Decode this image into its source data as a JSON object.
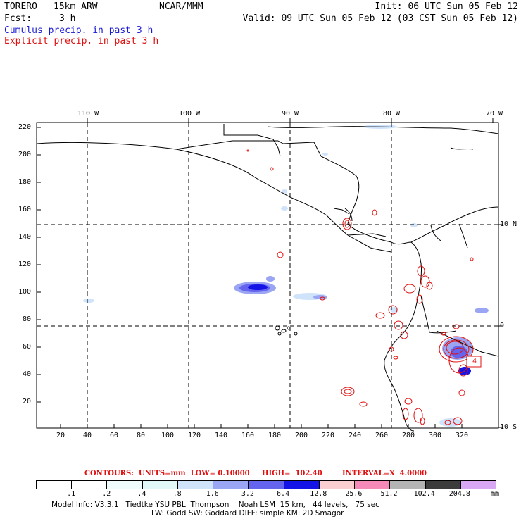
{
  "header": {
    "model": "TORERO",
    "resolution": "15km ARW",
    "org": "NCAR/MMM",
    "init": "Init: 06 UTC Sun 05 Feb 12",
    "fcst_label": "Fcst:",
    "fcst_value": "3 h",
    "valid": "Valid: 09 UTC Sun 05 Feb 12 (03 CST Sun 05 Feb 12)",
    "line_cumulus": "Cumulus precip. in past 3 h",
    "line_explicit": "Explicit precip. in past 3 h"
  },
  "colors": {
    "cumulus": "#1a1ad6",
    "explicit": "#e01010",
    "coast": "#000000"
  },
  "axes": {
    "top_lon": [
      "110 W",
      "100 W",
      "90 W",
      "80 W",
      "70 W"
    ],
    "right_lat": [
      "10 N",
      "0",
      "10 S"
    ],
    "left_y": [
      "220",
      "200",
      "180",
      "160",
      "140",
      "120",
      "100",
      "80",
      "60",
      "40",
      "20"
    ],
    "bottom_x": [
      "20",
      "40",
      "60",
      "80",
      "100",
      "120",
      "140",
      "160",
      "180",
      "200",
      "220",
      "240",
      "260",
      "280",
      "300",
      "320"
    ],
    "box_label": "4"
  },
  "legend": {
    "contours": "CONTOURS:  UNITS=mm  LOW= 0.10000",
    "high": "HIGH=  102.40",
    "interval": "INTERVAL=X  4.0000",
    "unit": "mm",
    "thresholds": [
      ".1",
      ".2",
      ".4",
      ".8",
      "1.6",
      "3.2",
      "6.4",
      "12.8",
      "25.6",
      "51.2",
      "102.4",
      "204.8"
    ],
    "fills": [
      "#ffffff",
      "#ffffff",
      "#f0fbfb",
      "#e2f7f7",
      "#cfe3fb",
      "#9aa6f3",
      "#6464ee",
      "#1414e6",
      "#fbcfcf",
      "#f58ab8",
      "#b4b4b4",
      "#3c3c3c",
      "#d9a8f5"
    ]
  },
  "footer": {
    "line1": "Model Info: V3.3.1   Tiedtke YSU PBL  Thompson    Noah LSM  15 km,   44 levels,   75 sec",
    "line2": "LW: Godd SW: Goddard DIFF: simple KM: 2D Smagor"
  }
}
